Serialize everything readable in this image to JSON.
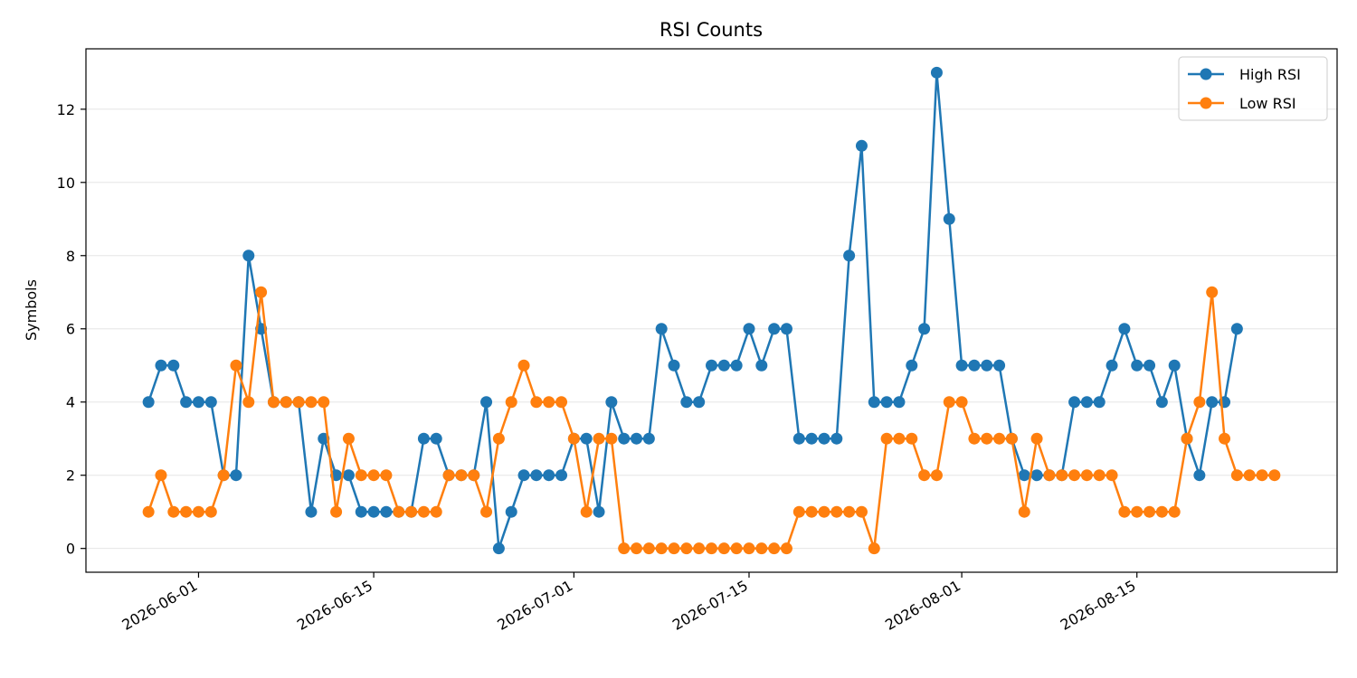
{
  "chart_data": {
    "type": "line",
    "title": "RSI Counts",
    "xlabel": "",
    "ylabel": "Symbols",
    "x_start": "2026-05-28",
    "x_step_days": 1,
    "x_ticks": [
      "2026-06-01",
      "2026-06-15",
      "2026-07-01",
      "2026-07-15",
      "2026-08-01",
      "2026-08-15"
    ],
    "xlim": [
      "2026-05-23",
      "2026-08-31"
    ],
    "y_ticks": [
      0,
      2,
      4,
      6,
      8,
      10,
      12
    ],
    "ylim": [
      -0.65,
      13.65
    ],
    "grid": "horizontal",
    "legend_position": "top-right",
    "series": [
      {
        "name": "High RSI",
        "color": "#1f77b4",
        "values": [
          4,
          5,
          5,
          4,
          4,
          4,
          2,
          2,
          8,
          6,
          4,
          4,
          4,
          1,
          3,
          2,
          2,
          1,
          1,
          1,
          1,
          1,
          3,
          3,
          2,
          2,
          2,
          4,
          0,
          1,
          2,
          2,
          2,
          2,
          3,
          3,
          1,
          4,
          3,
          3,
          3,
          6,
          5,
          4,
          4,
          5,
          5,
          5,
          6,
          5,
          6,
          6,
          3,
          3,
          3,
          3,
          8,
          11,
          4,
          4,
          4,
          5,
          6,
          13,
          9,
          5,
          5,
          5,
          5,
          3,
          2,
          2,
          2,
          2,
          4,
          4,
          4,
          5,
          6,
          5,
          5,
          4,
          5,
          3,
          2,
          4,
          4,
          6
        ]
      },
      {
        "name": "Low RSI",
        "color": "#ff7f0e",
        "values": [
          1,
          2,
          1,
          1,
          1,
          1,
          2,
          5,
          4,
          7,
          4,
          4,
          4,
          4,
          4,
          1,
          3,
          2,
          2,
          2,
          1,
          1,
          1,
          1,
          2,
          2,
          2,
          1,
          3,
          4,
          5,
          4,
          4,
          4,
          3,
          1,
          3,
          3,
          0,
          0,
          0,
          0,
          0,
          0,
          0,
          0,
          0,
          0,
          0,
          0,
          0,
          0,
          1,
          1,
          1,
          1,
          1,
          1,
          0,
          3,
          3,
          3,
          2,
          2,
          4,
          4,
          3,
          3,
          3,
          3,
          1,
          3,
          2,
          2,
          2,
          2,
          2,
          2,
          1,
          1,
          1,
          1,
          1,
          3,
          4,
          7,
          3,
          2,
          2,
          2,
          2
        ]
      }
    ]
  }
}
